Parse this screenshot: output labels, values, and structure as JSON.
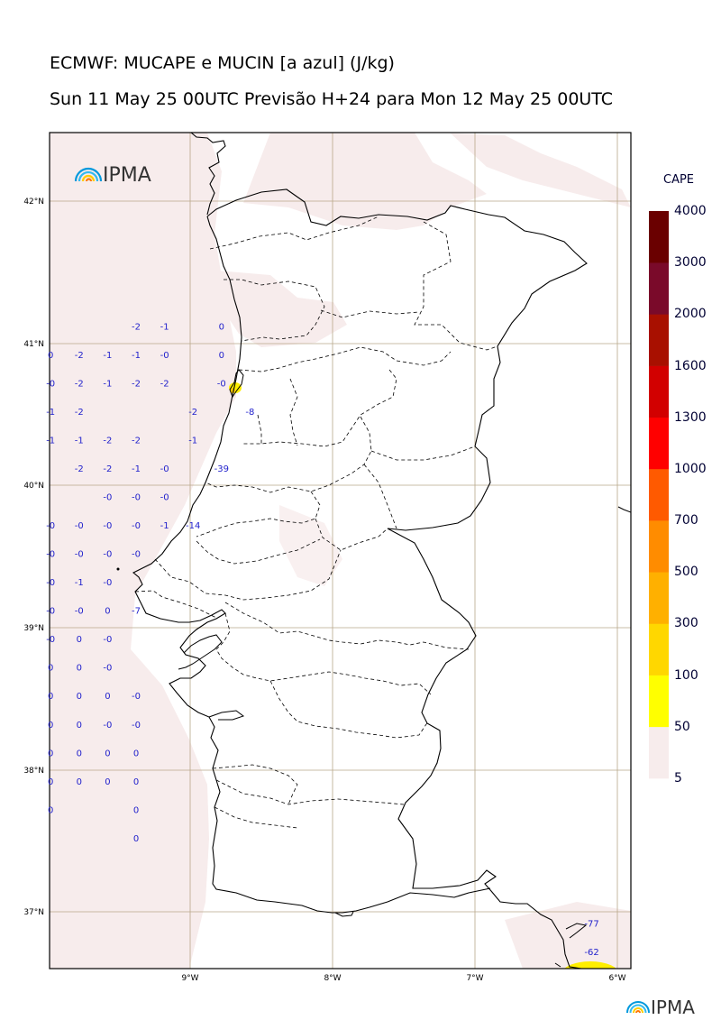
{
  "header": {
    "title": "ECMWF: MUCAPE e MUCIN [a azul] (J/kg)",
    "subtitle": "Sun 11 May 25 00UTC Previsão H+24 para Mon 12 May 25 00UTC"
  },
  "map": {
    "logo_text": "IPMA",
    "lat_labels": [
      "42°N",
      "41°N",
      "40°N",
      "39°N",
      "38°N",
      "37°N"
    ],
    "lon_labels": [
      "9°W",
      "8°W",
      "7°W",
      "6°W"
    ],
    "lat_values": [
      42,
      41,
      40,
      39,
      38,
      37
    ],
    "lon_values": [
      -9,
      -8,
      -7,
      -6
    ],
    "mucin_color": "#2222cc",
    "cape_shade_color": "#f7ecec",
    "cape_hotspot_color": "#ffee00",
    "mucin_values": [
      {
        "lon": -9.38,
        "lat": 41.12,
        "v": "-2"
      },
      {
        "lon": -9.18,
        "lat": 41.12,
        "v": "-1"
      },
      {
        "lon": -8.78,
        "lat": 41.12,
        "v": "0"
      },
      {
        "lon": -9.98,
        "lat": 40.92,
        "v": "0"
      },
      {
        "lon": -9.78,
        "lat": 40.92,
        "v": "-2"
      },
      {
        "lon": -9.58,
        "lat": 40.92,
        "v": "-1"
      },
      {
        "lon": -9.38,
        "lat": 40.92,
        "v": "-1"
      },
      {
        "lon": -9.18,
        "lat": 40.92,
        "v": "-0"
      },
      {
        "lon": -8.78,
        "lat": 40.92,
        "v": "0"
      },
      {
        "lon": -9.98,
        "lat": 40.72,
        "v": "-0"
      },
      {
        "lon": -9.78,
        "lat": 40.72,
        "v": "-2"
      },
      {
        "lon": -9.58,
        "lat": 40.72,
        "v": "-1"
      },
      {
        "lon": -9.38,
        "lat": 40.72,
        "v": "-2"
      },
      {
        "lon": -9.18,
        "lat": 40.72,
        "v": "-2"
      },
      {
        "lon": -8.78,
        "lat": 40.72,
        "v": "-0"
      },
      {
        "lon": -9.98,
        "lat": 40.52,
        "v": "-1"
      },
      {
        "lon": -9.78,
        "lat": 40.52,
        "v": "-2"
      },
      {
        "lon": -8.98,
        "lat": 40.52,
        "v": "-2"
      },
      {
        "lon": -8.58,
        "lat": 40.52,
        "v": "-8"
      },
      {
        "lon": -9.98,
        "lat": 40.32,
        "v": "-1"
      },
      {
        "lon": -9.78,
        "lat": 40.32,
        "v": "-1"
      },
      {
        "lon": -9.58,
        "lat": 40.32,
        "v": "-2"
      },
      {
        "lon": -9.38,
        "lat": 40.32,
        "v": "-2"
      },
      {
        "lon": -8.98,
        "lat": 40.32,
        "v": "-1"
      },
      {
        "lon": -9.78,
        "lat": 40.12,
        "v": "-2"
      },
      {
        "lon": -9.58,
        "lat": 40.12,
        "v": "-2"
      },
      {
        "lon": -9.38,
        "lat": 40.12,
        "v": "-1"
      },
      {
        "lon": -9.18,
        "lat": 40.12,
        "v": "-0"
      },
      {
        "lon": -8.78,
        "lat": 40.12,
        "v": "-39"
      },
      {
        "lon": -9.58,
        "lat": 39.92,
        "v": "-0"
      },
      {
        "lon": -9.38,
        "lat": 39.92,
        "v": "-0"
      },
      {
        "lon": -9.18,
        "lat": 39.92,
        "v": "-0"
      },
      {
        "lon": -9.98,
        "lat": 39.72,
        "v": "-0"
      },
      {
        "lon": -9.78,
        "lat": 39.72,
        "v": "-0"
      },
      {
        "lon": -9.58,
        "lat": 39.72,
        "v": "-0"
      },
      {
        "lon": -9.38,
        "lat": 39.72,
        "v": "-0"
      },
      {
        "lon": -9.18,
        "lat": 39.72,
        "v": "-1"
      },
      {
        "lon": -8.98,
        "lat": 39.72,
        "v": "-14"
      },
      {
        "lon": -9.98,
        "lat": 39.52,
        "v": "-0"
      },
      {
        "lon": -9.78,
        "lat": 39.52,
        "v": "-0"
      },
      {
        "lon": -9.58,
        "lat": 39.52,
        "v": "-0"
      },
      {
        "lon": -9.38,
        "lat": 39.52,
        "v": "-0"
      },
      {
        "lon": -9.98,
        "lat": 39.32,
        "v": "-0"
      },
      {
        "lon": -9.78,
        "lat": 39.32,
        "v": "-1"
      },
      {
        "lon": -9.58,
        "lat": 39.32,
        "v": "-0"
      },
      {
        "lon": -9.98,
        "lat": 39.12,
        "v": "-0"
      },
      {
        "lon": -9.78,
        "lat": 39.12,
        "v": "-0"
      },
      {
        "lon": -9.58,
        "lat": 39.12,
        "v": "0"
      },
      {
        "lon": -9.38,
        "lat": 39.12,
        "v": "-7"
      },
      {
        "lon": -9.98,
        "lat": 38.92,
        "v": "-0"
      },
      {
        "lon": -9.78,
        "lat": 38.92,
        "v": "0"
      },
      {
        "lon": -9.58,
        "lat": 38.92,
        "v": "-0"
      },
      {
        "lon": -9.98,
        "lat": 38.72,
        "v": "0"
      },
      {
        "lon": -9.78,
        "lat": 38.72,
        "v": "0"
      },
      {
        "lon": -9.58,
        "lat": 38.72,
        "v": "-0"
      },
      {
        "lon": -9.98,
        "lat": 38.52,
        "v": "0"
      },
      {
        "lon": -9.78,
        "lat": 38.52,
        "v": "0"
      },
      {
        "lon": -9.58,
        "lat": 38.52,
        "v": "0"
      },
      {
        "lon": -9.38,
        "lat": 38.52,
        "v": "-0"
      },
      {
        "lon": -9.98,
        "lat": 38.32,
        "v": "0"
      },
      {
        "lon": -9.78,
        "lat": 38.32,
        "v": "0"
      },
      {
        "lon": -9.58,
        "lat": 38.32,
        "v": "-0"
      },
      {
        "lon": -9.38,
        "lat": 38.32,
        "v": "-0"
      },
      {
        "lon": -9.98,
        "lat": 38.12,
        "v": "0"
      },
      {
        "lon": -9.78,
        "lat": 38.12,
        "v": "0"
      },
      {
        "lon": -9.58,
        "lat": 38.12,
        "v": "0"
      },
      {
        "lon": -9.38,
        "lat": 38.12,
        "v": "0"
      },
      {
        "lon": -9.98,
        "lat": 37.92,
        "v": "0"
      },
      {
        "lon": -9.78,
        "lat": 37.92,
        "v": "0"
      },
      {
        "lon": -9.58,
        "lat": 37.92,
        "v": "0"
      },
      {
        "lon": -9.38,
        "lat": 37.92,
        "v": "0"
      },
      {
        "lon": -9.98,
        "lat": 37.72,
        "v": "0"
      },
      {
        "lon": -9.38,
        "lat": 37.72,
        "v": "0"
      },
      {
        "lon": -9.38,
        "lat": 37.52,
        "v": "0"
      },
      {
        "lon": -6.18,
        "lat": 36.92,
        "v": "-77"
      },
      {
        "lon": -6.18,
        "lat": 36.72,
        "v": "-62"
      }
    ]
  },
  "colorbar": {
    "title": "CAPE",
    "levels": [
      "5",
      "50",
      "100",
      "300",
      "500",
      "700",
      "1000",
      "1300",
      "1600",
      "2000",
      "3000",
      "4000"
    ],
    "colors": [
      "#f7ecec",
      "#ffff00",
      "#ffd700",
      "#ffb000",
      "#ff8c00",
      "#ff5a00",
      "#ff0000",
      "#d20000",
      "#a81000",
      "#7a0a2a",
      "#6a0000"
    ]
  },
  "footer": {
    "logo_text": "IPMA"
  }
}
